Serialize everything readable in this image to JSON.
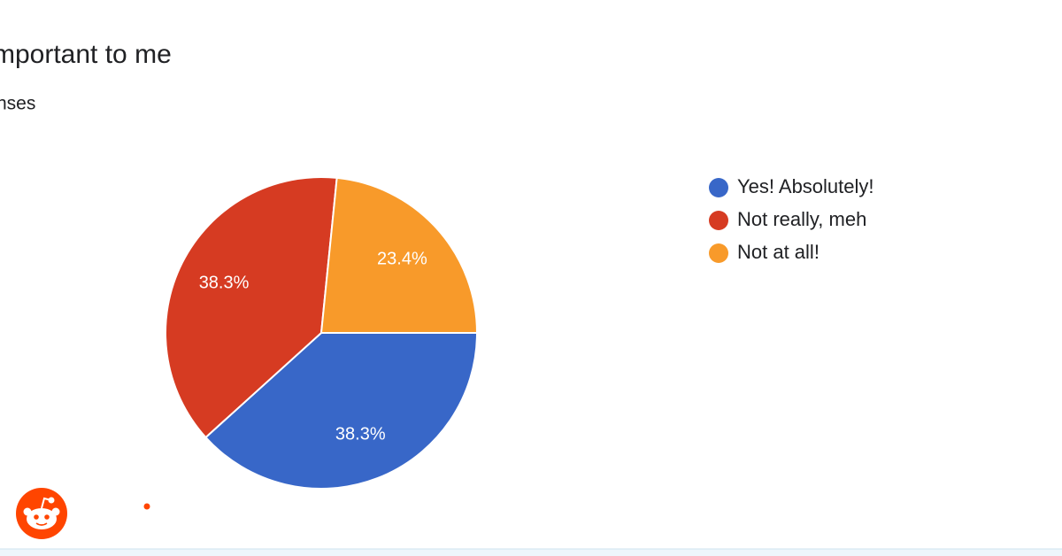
{
  "chart_data": {
    "type": "pie",
    "title": "mportant to me",
    "subtitle": "nses",
    "categories": [
      "Yes! Absolutely!",
      "Not really, meh",
      "Not at all!"
    ],
    "values": [
      38.3,
      38.3,
      23.4
    ],
    "value_labels": [
      "38.3%",
      "38.3%",
      "23.4%"
    ],
    "colors": [
      "#3867c8",
      "#d63b22",
      "#f89a2a"
    ],
    "legend": "right"
  }
}
